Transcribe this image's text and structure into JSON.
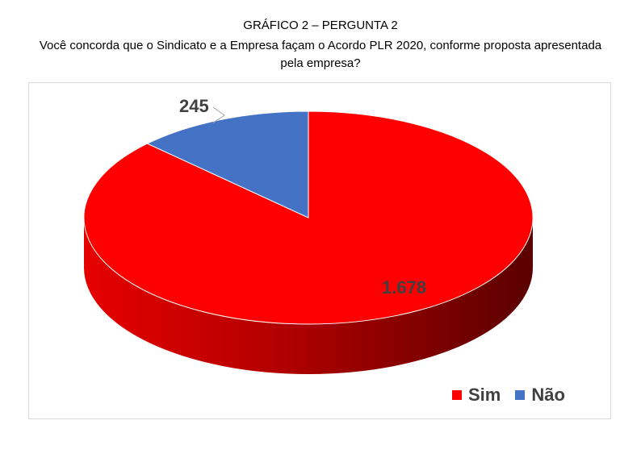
{
  "header": {
    "heading": "GRÁFICO 2 – PERGUNTA 2",
    "question": "Você concorda que o Sindicato e a Empresa façam o Acordo PLR 2020, conforme proposta apresentada pela empresa?"
  },
  "chart_data": {
    "type": "pie",
    "title": "GRÁFICO 2 – PERGUNTA 2",
    "subtitle": "Você concorda que o Sindicato e a Empresa façam o Acordo PLR 2020, conforme proposta apresentada pela empresa?",
    "style": "3d",
    "categories": [
      "Sim",
      "Não"
    ],
    "values": [
      1678,
      245
    ],
    "data_labels": [
      "1.678",
      "245"
    ],
    "colors": [
      "#ff0000",
      "#4472c4"
    ],
    "legend_position": "bottom-right"
  },
  "legend": {
    "items": [
      {
        "label": "Sim",
        "color": "#ff0000"
      },
      {
        "label": "Não",
        "color": "#4472c4"
      }
    ]
  }
}
